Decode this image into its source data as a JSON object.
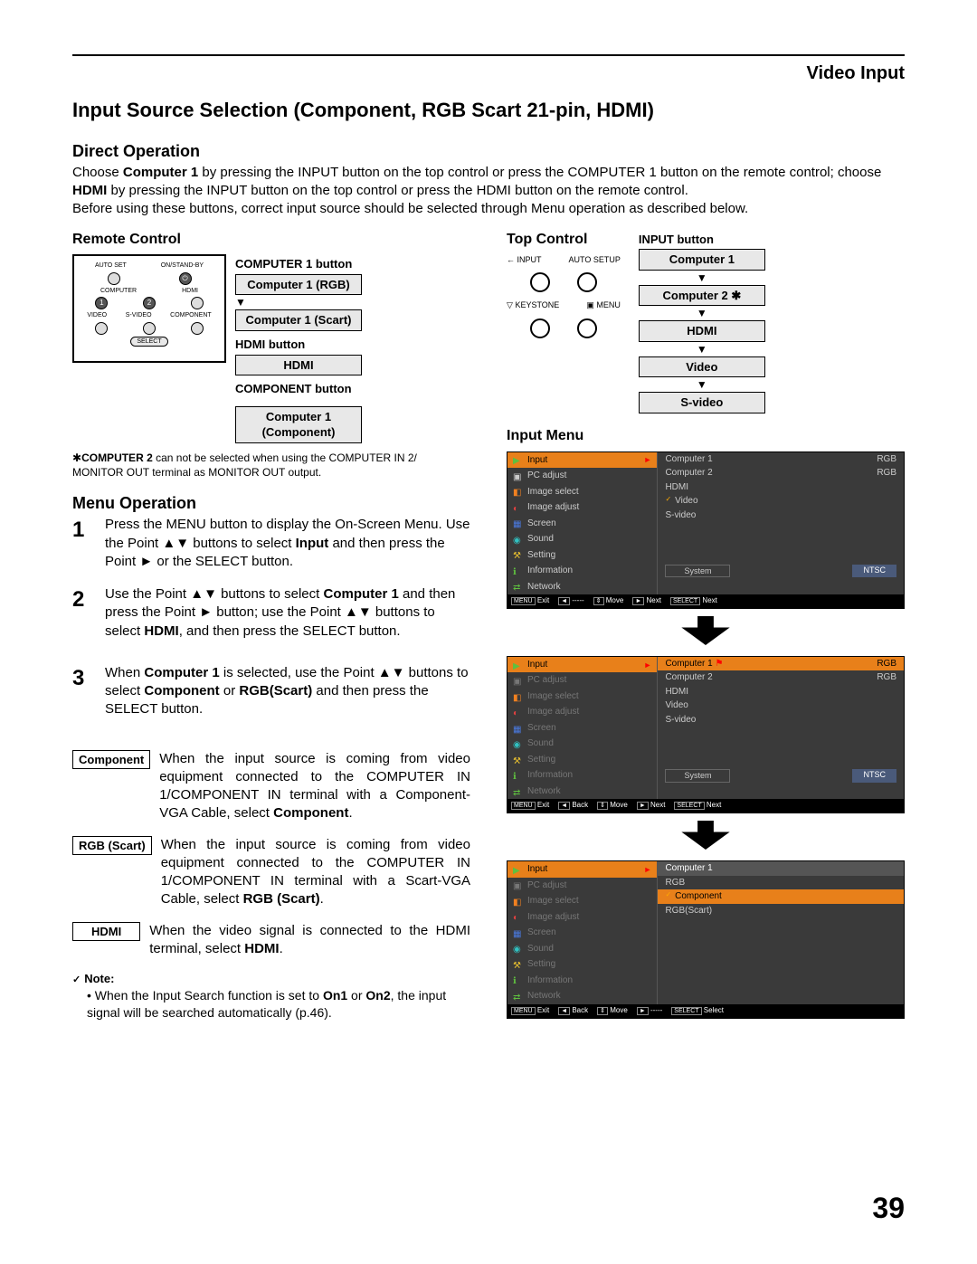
{
  "section_label": "Video Input",
  "main_heading": "Input Source Selection (Component, RGB Scart 21-pin, HDMI)",
  "direct_operation": {
    "heading": "Direct Operation",
    "para1_a": "Choose ",
    "para1_b_bold": "Computer 1",
    "para1_c": " by pressing the INPUT button on the top control or press the COMPUTER 1 button on the remote control; choose ",
    "para1_d_bold": "HDMI",
    "para1_e": " by pressing the INPUT button on the top control or press the HDMI button on the remote control.",
    "para2": "Before using these buttons, correct input source should be selected through Menu operation as described below."
  },
  "remote_control": {
    "heading": "Remote Control",
    "labels": {
      "auto_set": "AUTO SET",
      "on_standby": "ON/STAND-BY",
      "computer": "COMPUTER",
      "hdmi": "HDMI",
      "video": "VIDEO",
      "s_video": "S-VIDEO",
      "component": "COMPONENT",
      "select": "SELECT",
      "one": "1",
      "two": "2"
    },
    "callouts": {
      "computer1_button": "COMPUTER 1 button",
      "computer1_rgb": "Computer 1 (RGB)",
      "computer1_scart": "Computer 1 (Scart)",
      "hdmi_button": "HDMI button",
      "hdmi": "HDMI",
      "component_button": "COMPONENT button",
      "computer1": "Computer 1",
      "component": "(Component)"
    }
  },
  "top_control": {
    "heading": "Top Control",
    "input_button_label": "INPUT button",
    "row1_left": "← INPUT",
    "row1_right": "AUTO SETUP",
    "row2_left": "▽ KEYSTONE",
    "row2_right": "▣ MENU",
    "flow": [
      "Computer 1",
      "Computer 2 ✱",
      "HDMI",
      "Video",
      "S-video"
    ]
  },
  "footnote_a": "✱",
  "footnote_b_bold": "COMPUTER 2",
  "footnote_c": " can not be selected when using the COMPUTER IN 2/ MONITOR OUT terminal as MONITOR OUT output.",
  "menu_operation": {
    "heading": "Menu Operation",
    "steps": [
      {
        "num": "1",
        "a": "Press the MENU button to display the On-Screen Menu. Use the Point ▲▼ buttons to select ",
        "b_bold": "Input",
        "c": " and then press the Point ► or the SELECT button."
      },
      {
        "num": "2",
        "a": "Use the Point ▲▼ buttons to select ",
        "b_bold": "Computer 1",
        "c": " and then press the Point ► button; use the Point ▲▼ buttons to select ",
        "d_bold": "HDMI",
        "e": ", and then press the SELECT button."
      },
      {
        "num": "3",
        "a": "When ",
        "b_bold": "Computer 1",
        "c": " is selected, use the Point ▲▼ buttons to select ",
        "d_bold": "Component",
        "e": " or ",
        "f_bold": "RGB(Scart)",
        "g": " and then press the SELECT button."
      }
    ],
    "defs": [
      {
        "label": "Component",
        "a": "When the input source is coming from video equipment connected to the COMPUTER IN 1/COMPONENT IN terminal with a Component-VGA Cable, select ",
        "b_bold": "Component",
        "c": "."
      },
      {
        "label": "RGB (Scart)",
        "a": "When the input source is coming from video equipment connected to the COMPUTER IN 1/COMPONENT IN terminal with a Scart-VGA Cable, select ",
        "b_bold": "RGB (Scart)",
        "c": "."
      },
      {
        "label": "HDMI",
        "a": "When the video signal is connected to the HDMI terminal, select ",
        "b_bold": "HDMI",
        "c": "."
      }
    ],
    "note_head": "Note:",
    "note_a": "• When the Input Search function is set to ",
    "note_b_bold": "On1",
    "note_c": " or ",
    "note_d_bold": "On2",
    "note_e": ", the input signal will be searched automatically (p.46)."
  },
  "input_menu_heading": "Input Menu",
  "osd": {
    "left_items": [
      "Input",
      "PC adjust",
      "Image select",
      "Image adjust",
      "Screen",
      "Sound",
      "Setting",
      "Information",
      "Network"
    ],
    "left_icons": [
      "▶",
      "▣",
      "◧",
      "◐",
      "▦",
      "◉",
      "⚒",
      "ℹ",
      "⇄"
    ],
    "screen1_right": [
      {
        "l": "Computer 1",
        "r": "RGB"
      },
      {
        "l": "Computer 2",
        "r": "RGB"
      },
      {
        "l": "HDMI",
        "r": ""
      },
      {
        "l": "Video",
        "r": "",
        "check": true
      },
      {
        "l": "S-video",
        "r": ""
      }
    ],
    "screen2_right": [
      {
        "l": "Computer 1",
        "r": "RGB",
        "hl": true,
        "mark": true
      },
      {
        "l": "Computer 2",
        "r": "RGB"
      },
      {
        "l": "HDMI",
        "r": ""
      },
      {
        "l": "Video",
        "r": ""
      },
      {
        "l": "S-video",
        "r": ""
      }
    ],
    "screen3_right_header": "Computer 1",
    "screen3_right": [
      {
        "l": "RGB"
      },
      {
        "l": "Component",
        "hl": true,
        "check": true
      },
      {
        "l": "RGB(Scart)"
      }
    ],
    "system_label": "System",
    "ntsc_label": "NTSC",
    "foot1": [
      [
        "MENU",
        "Exit"
      ],
      [
        "◄",
        "-----"
      ],
      [
        "⇕",
        "Move"
      ],
      [
        "►",
        "Next"
      ],
      [
        "SELECT",
        "Next"
      ]
    ],
    "foot2": [
      [
        "MENU",
        "Exit"
      ],
      [
        "◄",
        "Back"
      ],
      [
        "⇕",
        "Move"
      ],
      [
        "►",
        "Next"
      ],
      [
        "SELECT",
        "Next"
      ]
    ],
    "foot3": [
      [
        "MENU",
        "Exit"
      ],
      [
        "◄",
        "Back"
      ],
      [
        "⇕",
        "Move"
      ],
      [
        "►",
        "-----"
      ],
      [
        "SELECT",
        "Select"
      ]
    ]
  },
  "page_number": "39",
  "colors": {
    "highlight": "#e8801a",
    "osd_bg": "#3a3a3a",
    "flow_bg": "#e8e8e8"
  }
}
